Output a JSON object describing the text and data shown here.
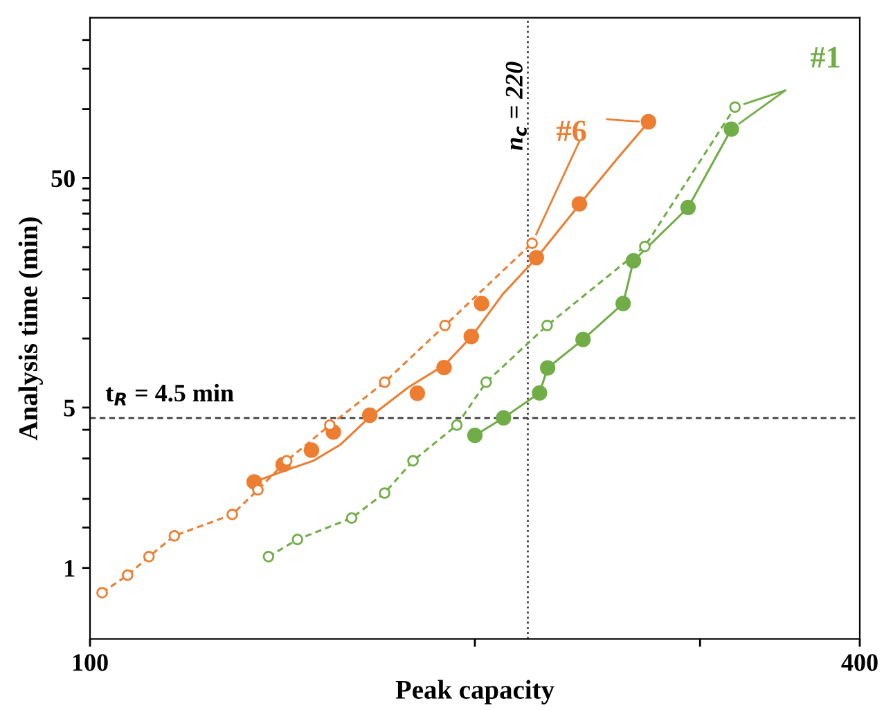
{
  "chart_data": {
    "type": "line",
    "xlabel": "Peak capacity",
    "ylabel": "Analysis time (min)",
    "log": "xy",
    "xlim": [
      100,
      400
    ],
    "ylim": [
      0.49,
      250
    ],
    "xticks": [
      100,
      {
        "value": 200,
        "label": null
      },
      {
        "value": 300,
        "label": null
      },
      400
    ],
    "yticks": [
      1,
      {
        "value": 1.5,
        "label": null
      },
      {
        "value": 2,
        "label": null
      },
      {
        "value": 3,
        "label": null
      },
      {
        "value": 4,
        "label": null
      },
      5,
      {
        "value": 10,
        "label": null
      },
      {
        "value": 15,
        "label": null
      },
      {
        "value": 20,
        "label": null
      },
      {
        "value": 25,
        "label": null
      },
      {
        "value": 30,
        "label": null
      },
      {
        "value": 35,
        "label": null
      },
      {
        "value": 40,
        "label": null
      },
      {
        "value": 45,
        "label": null
      },
      50,
      {
        "value": 100,
        "label": null
      },
      {
        "value": 150,
        "label": null
      },
      {
        "value": 200,
        "label": null
      }
    ],
    "grid": false,
    "series": [
      {
        "color": "#ed7d31",
        "marker": "circle",
        "line_style": "dashed",
        "x": [
          102.2,
          107,
          111.2,
          116.4,
          129.2,
          135.3,
          142.5,
          154,
          170,
          189.5,
          221.7
        ],
        "values": [
          0.78,
          0.93,
          1.12,
          1.38,
          1.71,
          2.19,
          2.93,
          4.19,
          6.45,
          11.4,
          26
        ]
      },
      {
        "type": "scatter",
        "color": "#ed7d31",
        "marker": "circle",
        "x": [
          134.4,
          141.6,
          149,
          155,
          165.5,
          180.3,
          189.2,
          198.7,
          202.4,
          223.4,
          241.4,
          273.4
        ],
        "values": [
          2.37,
          2.82,
          3.26,
          3.91,
          4.63,
          5.77,
          7.47,
          10.2,
          14.2,
          22.5,
          38.6,
          88
        ]
      },
      {
        "name": "#6",
        "color": "#ed7d31",
        "marker": "none",
        "line_style": "solid",
        "x": [
          134.4,
          142.4,
          149.5,
          156.9,
          165.6,
          177.3,
          189.4,
          198.8,
          210.3,
          223.4,
          241.4,
          258.7,
          273.4
        ],
        "values": [
          2.37,
          2.67,
          2.93,
          3.44,
          4.56,
          6.11,
          7.67,
          10.2,
          15.6,
          22.4,
          38.3,
          61.2,
          87.7
        ]
      },
      {
        "color": "#70ad47",
        "marker": "circle",
        "line_style": "dashed",
        "x": [
          137.9,
          145.3,
          160.2,
          170,
          178.9,
          193.6,
          204.1,
          227.8,
          271.6,
          319.5
        ],
        "values": [
          1.12,
          1.33,
          1.65,
          2.12,
          2.93,
          4.19,
          6.45,
          11.4,
          25.2,
          102
        ]
      },
      {
        "name": "#1",
        "color": "#70ad47",
        "marker": "circle",
        "line_style": "solid",
        "x": [
          200,
          210.6,
          224.7,
          228,
          243,
          261.2,
          266.1,
          293.6,
          317.4
        ],
        "values": [
          3.78,
          4.51,
          5.79,
          7.44,
          9.9,
          14.2,
          21.8,
          37.2,
          81.7
        ]
      }
    ],
    "ref_lines": [
      {
        "axis": "x",
        "value": 220,
        "label": "n$_{c}$ = 220",
        "color": "#404040",
        "line_style": "dotted"
      },
      {
        "axis": "y",
        "value": 4.5,
        "label": "t$_{R}$ = 4.5 min",
        "color": "#404040",
        "line_style": "dashed"
      }
    ]
  }
}
